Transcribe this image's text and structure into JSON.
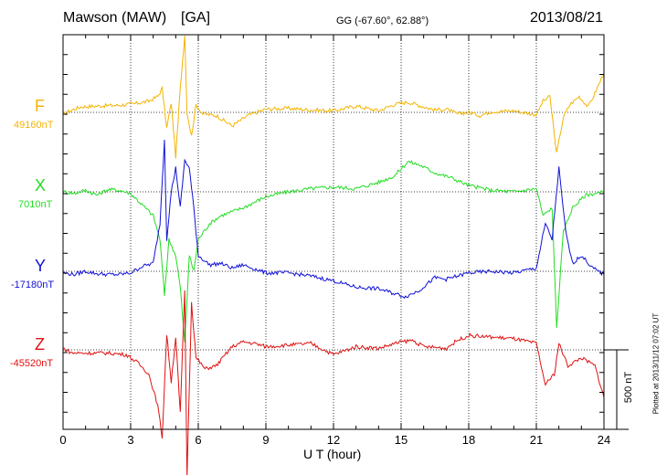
{
  "header": {
    "station": "Mawson (MAW)",
    "code": "[GA]",
    "coords": "GG (-67.60°,  62.88°)",
    "date": "2013/08/21"
  },
  "side_note": "Plotted at 2013/11/12 07:02 UT",
  "scale_label": "500 nT",
  "colors": {
    "F": "#f4b400",
    "X": "#22dd22",
    "Y": "#1010d8",
    "Z": "#e01010",
    "axis": "#000000"
  },
  "chart_data": {
    "type": "line",
    "xlabel": "U T (hour)",
    "xlim": [
      0,
      24
    ],
    "xticks": [
      "0",
      "3",
      "6",
      "9",
      "12",
      "15",
      "18",
      "21",
      "24"
    ],
    "grid": true,
    "series": [
      {
        "name": "F",
        "baseline_label": "49160nT",
        "values": [
          [
            0,
            -15
          ],
          [
            0.3,
            10
          ],
          [
            0.8,
            35
          ],
          [
            1.5,
            40
          ],
          [
            2.5,
            45
          ],
          [
            3.2,
            55
          ],
          [
            3.8,
            70
          ],
          [
            4.2,
            100
          ],
          [
            4.4,
            150
          ],
          [
            4.6,
            -100
          ],
          [
            4.8,
            60
          ],
          [
            5.0,
            -280
          ],
          [
            5.2,
            150
          ],
          [
            5.4,
            490
          ],
          [
            5.5,
            0
          ],
          [
            5.7,
            -150
          ],
          [
            5.9,
            50
          ],
          [
            6.2,
            -10
          ],
          [
            6.8,
            -20
          ],
          [
            7.5,
            -85
          ],
          [
            8.2,
            -20
          ],
          [
            9,
            20
          ],
          [
            10,
            25
          ],
          [
            11,
            15
          ],
          [
            12,
            10
          ],
          [
            13,
            40
          ],
          [
            14,
            10
          ],
          [
            14.7,
            50
          ],
          [
            15.3,
            65
          ],
          [
            16,
            35
          ],
          [
            16.5,
            15
          ],
          [
            17,
            20
          ],
          [
            17.5,
            -10
          ],
          [
            18,
            0
          ],
          [
            18.5,
            -20
          ],
          [
            19,
            5
          ],
          [
            20,
            10
          ],
          [
            21,
            -15
          ],
          [
            21.3,
            70
          ],
          [
            21.6,
            100
          ],
          [
            21.9,
            -260
          ],
          [
            22.2,
            -30
          ],
          [
            22.5,
            50
          ],
          [
            22.9,
            100
          ],
          [
            23.3,
            35
          ],
          [
            23.6,
            120
          ],
          [
            24,
            250
          ]
        ]
      },
      {
        "name": "X",
        "baseline_label": "7010nT",
        "values": [
          [
            0,
            0
          ],
          [
            0.5,
            -10
          ],
          [
            1,
            10
          ],
          [
            1.5,
            -20
          ],
          [
            2,
            15
          ],
          [
            2.5,
            10
          ],
          [
            3,
            -10
          ],
          [
            3.5,
            -80
          ],
          [
            4,
            -150
          ],
          [
            4.3,
            -300
          ],
          [
            4.5,
            -650
          ],
          [
            4.7,
            -300
          ],
          [
            5.0,
            -400
          ],
          [
            5.2,
            -600
          ],
          [
            5.4,
            -950
          ],
          [
            5.6,
            -400
          ],
          [
            5.8,
            -500
          ],
          [
            6,
            -300
          ],
          [
            6.5,
            -200
          ],
          [
            7,
            -150
          ],
          [
            8,
            -100
          ],
          [
            9,
            -30
          ],
          [
            10,
            0
          ],
          [
            11,
            20
          ],
          [
            12,
            30
          ],
          [
            13,
            20
          ],
          [
            14,
            60
          ],
          [
            14.7,
            100
          ],
          [
            15.3,
            190
          ],
          [
            15.8,
            170
          ],
          [
            16.5,
            120
          ],
          [
            17.2,
            90
          ],
          [
            18,
            40
          ],
          [
            19,
            10
          ],
          [
            20,
            0
          ],
          [
            21,
            20
          ],
          [
            21.3,
            -150
          ],
          [
            21.7,
            -100
          ],
          [
            21.9,
            -850
          ],
          [
            22.2,
            -250
          ],
          [
            22.6,
            -100
          ],
          [
            23.2,
            -20
          ],
          [
            24,
            0
          ]
        ]
      },
      {
        "name": "Y",
        "baseline_label": "-17180nT",
        "values": [
          [
            0,
            -10
          ],
          [
            0.5,
            -20
          ],
          [
            1,
            0
          ],
          [
            1.5,
            -15
          ],
          [
            2,
            -20
          ],
          [
            2.5,
            -20
          ],
          [
            3,
            -10
          ],
          [
            3.5,
            30
          ],
          [
            4,
            50
          ],
          [
            4.3,
            300
          ],
          [
            4.5,
            830
          ],
          [
            4.6,
            200
          ],
          [
            4.8,
            500
          ],
          [
            5.0,
            650
          ],
          [
            5.2,
            400
          ],
          [
            5.4,
            700
          ],
          [
            5.6,
            650
          ],
          [
            5.8,
            400
          ],
          [
            6,
            100
          ],
          [
            6.5,
            40
          ],
          [
            7,
            50
          ],
          [
            7.5,
            20
          ],
          [
            8,
            40
          ],
          [
            9,
            -10
          ],
          [
            10,
            -10
          ],
          [
            11,
            -30
          ],
          [
            12,
            -60
          ],
          [
            13,
            -100
          ],
          [
            14,
            -110
          ],
          [
            14.7,
            -140
          ],
          [
            15.2,
            -160
          ],
          [
            15.8,
            -120
          ],
          [
            16.5,
            -40
          ],
          [
            17,
            -50
          ],
          [
            18,
            -10
          ],
          [
            19,
            0
          ],
          [
            20,
            -10
          ],
          [
            21,
            20
          ],
          [
            21.4,
            300
          ],
          [
            21.7,
            200
          ],
          [
            22.0,
            650
          ],
          [
            22.3,
            250
          ],
          [
            22.6,
            50
          ],
          [
            23,
            100
          ],
          [
            23.5,
            20
          ],
          [
            24,
            -20
          ]
        ]
      },
      {
        "name": "Z",
        "baseline_label": "-45520nT",
        "values": [
          [
            0,
            10
          ],
          [
            0.4,
            -20
          ],
          [
            1,
            -20
          ],
          [
            2,
            -20
          ],
          [
            2.8,
            -30
          ],
          [
            3.3,
            -80
          ],
          [
            3.8,
            -150
          ],
          [
            4.2,
            -350
          ],
          [
            4.4,
            -550
          ],
          [
            4.6,
            100
          ],
          [
            4.8,
            -200
          ],
          [
            5.0,
            80
          ],
          [
            5.2,
            -400
          ],
          [
            5.4,
            380
          ],
          [
            5.5,
            -800
          ],
          [
            5.7,
            300
          ],
          [
            5.9,
            -50
          ],
          [
            6.3,
            -120
          ],
          [
            6.8,
            -100
          ],
          [
            7.5,
            20
          ],
          [
            8,
            50
          ],
          [
            8.5,
            40
          ],
          [
            9,
            20
          ],
          [
            10,
            30
          ],
          [
            11,
            40
          ],
          [
            12,
            -30
          ],
          [
            13,
            20
          ],
          [
            14,
            10
          ],
          [
            15,
            50
          ],
          [
            15.5,
            60
          ],
          [
            16,
            20
          ],
          [
            17,
            10
          ],
          [
            17.5,
            60
          ],
          [
            18,
            90
          ],
          [
            19,
            80
          ],
          [
            20,
            70
          ],
          [
            21,
            40
          ],
          [
            21.4,
            -220
          ],
          [
            21.8,
            -150
          ],
          [
            22,
            40
          ],
          [
            22.4,
            -100
          ],
          [
            23,
            -50
          ],
          [
            23.6,
            -100
          ],
          [
            24,
            -300
          ]
        ]
      }
    ]
  }
}
